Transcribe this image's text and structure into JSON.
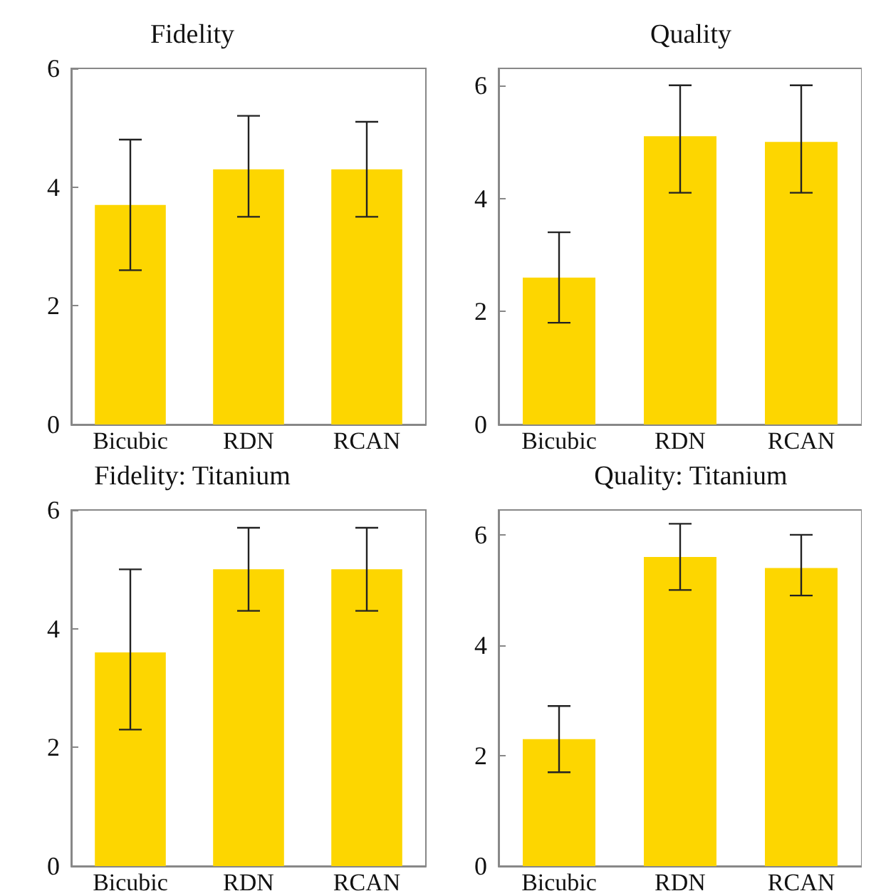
{
  "chart_data": [
    {
      "type": "bar",
      "title": "Fidelity",
      "categories": [
        "Bicubic",
        "RDN",
        "RCAN"
      ],
      "values": [
        3.7,
        4.3,
        4.3
      ],
      "errors": [
        [
          2.6,
          4.8
        ],
        [
          3.5,
          5.2
        ],
        [
          3.5,
          5.1
        ]
      ],
      "color": "#fdd600",
      "ylim": [
        0,
        6
      ],
      "yticks": [
        0,
        2,
        4,
        6
      ],
      "grid": false
    },
    {
      "type": "bar",
      "title": "Quality",
      "categories": [
        "Bicubic",
        "RDN",
        "RCAN"
      ],
      "values": [
        2.6,
        5.1,
        5.0
      ],
      "errors": [
        [
          1.8,
          3.4
        ],
        [
          4.1,
          6.0
        ],
        [
          4.1,
          6.0
        ]
      ],
      "color": "#fdd600",
      "ylim": [
        0,
        6.3
      ],
      "yticks": [
        0,
        2,
        4,
        6
      ],
      "grid": false
    },
    {
      "type": "bar",
      "title": "Fidelity: Titanium",
      "categories": [
        "Bicubic",
        "RDN",
        "RCAN"
      ],
      "values": [
        3.6,
        5.0,
        5.0
      ],
      "errors": [
        [
          2.3,
          5.0
        ],
        [
          4.3,
          5.7
        ],
        [
          4.3,
          5.7
        ]
      ],
      "color": "#fdd600",
      "ylim": [
        0,
        6
      ],
      "yticks": [
        0,
        2,
        4,
        6
      ],
      "grid": false
    },
    {
      "type": "bar",
      "title": "Quality: Titanium",
      "categories": [
        "Bicubic",
        "RDN",
        "RCAN"
      ],
      "values": [
        2.3,
        5.6,
        5.4
      ],
      "errors": [
        [
          1.7,
          2.9
        ],
        [
          5.0,
          6.2
        ],
        [
          4.9,
          6.0
        ]
      ],
      "color": "#fdd600",
      "ylim": [
        0,
        6.45
      ],
      "yticks": [
        0,
        2,
        4,
        6
      ],
      "grid": false
    }
  ]
}
